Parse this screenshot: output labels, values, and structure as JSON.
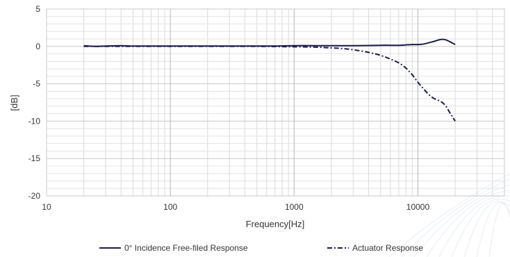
{
  "chart_data": {
    "type": "line",
    "title": "",
    "xlabel": "Frequency[Hz]",
    "ylabel": "[dB]",
    "xscale": "log",
    "xlim": [
      10,
      50000
    ],
    "ylim": [
      -20,
      5
    ],
    "grid": true,
    "legend_position": "bottom",
    "x_ticks": [
      "10",
      "100",
      "1000",
      "10000"
    ],
    "y_ticks": [
      "5",
      "0",
      "-5",
      "-10",
      "-15",
      "-20"
    ],
    "series": [
      {
        "name": "0° Incidence Free-filed Response",
        "style": "solid",
        "color": "#1c1c4a",
        "x": [
          20,
          25,
          30,
          40,
          50,
          70,
          100,
          150,
          200,
          300,
          500,
          700,
          1000,
          1500,
          2000,
          3000,
          4000,
          5000,
          6000,
          7000,
          8000,
          9000,
          10000,
          11000,
          12000,
          13000,
          14000,
          15000,
          16000,
          17000,
          18000,
          19000,
          20000
        ],
        "y": [
          0.1,
          0.0,
          0.05,
          0.1,
          0.05,
          0.05,
          0.05,
          0.05,
          0.05,
          0.05,
          0.05,
          0.05,
          0.1,
          0.1,
          0.1,
          0.1,
          0.12,
          0.15,
          0.15,
          0.15,
          0.2,
          0.25,
          0.25,
          0.3,
          0.45,
          0.6,
          0.75,
          0.9,
          0.95,
          0.85,
          0.65,
          0.45,
          0.25
        ]
      },
      {
        "name": "Actuator Response",
        "style": "dash-dot",
        "color": "#1c1c4a",
        "x": [
          20,
          30,
          50,
          100,
          200,
          500,
          1000,
          1500,
          2000,
          2500,
          3000,
          4000,
          5000,
          6000,
          7000,
          8000,
          9000,
          10000,
          11000,
          12000,
          13000,
          14000,
          15000,
          16000,
          17000,
          18000,
          19000,
          20000
        ],
        "y": [
          0.0,
          0.0,
          0.0,
          0.0,
          0.0,
          0.0,
          -0.05,
          -0.1,
          -0.2,
          -0.3,
          -0.45,
          -0.8,
          -1.2,
          -1.7,
          -2.2,
          -2.9,
          -3.8,
          -4.8,
          -5.6,
          -6.3,
          -6.8,
          -7.1,
          -7.3,
          -7.6,
          -8.1,
          -8.8,
          -9.4,
          -10.0
        ]
      }
    ]
  }
}
